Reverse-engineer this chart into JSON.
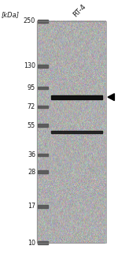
{
  "fig_width": 1.5,
  "fig_height": 3.21,
  "dpi": 100,
  "outer_bg": "#ffffff",
  "blot_bg": "#b8b8b8",
  "ladder_bg": "#c8c8c8",
  "title": "RT-4",
  "kda_label": "[kDa]",
  "ladder_positions": [
    250,
    130,
    95,
    72,
    55,
    36,
    28,
    17,
    10
  ],
  "band1_kda": 83,
  "band2_kda": 50,
  "arrow_kda": 83,
  "band_color": "#0a0a0a",
  "text_color": "#1a1a1a",
  "ladder_band_color": "#555555",
  "label_fontsize": 5.8,
  "title_fontsize": 6.5,
  "kda_label_fontsize": 6.0
}
